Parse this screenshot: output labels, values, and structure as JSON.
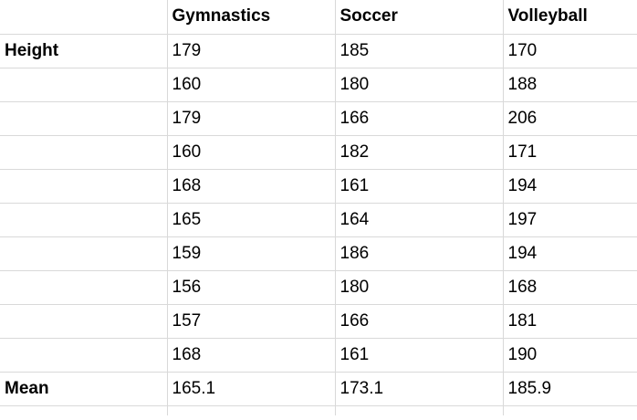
{
  "columns": [
    "",
    "Gymnastics",
    "Soccer",
    "Volleyball"
  ],
  "rows": [
    {
      "label": "Height",
      "values": [
        "179",
        "185",
        "170"
      ]
    },
    {
      "label": "",
      "values": [
        "160",
        "180",
        "188"
      ]
    },
    {
      "label": "",
      "values": [
        "179",
        "166",
        "206"
      ]
    },
    {
      "label": "",
      "values": [
        "160",
        "182",
        "171"
      ]
    },
    {
      "label": "",
      "values": [
        "168",
        "161",
        "194"
      ]
    },
    {
      "label": "",
      "values": [
        "165",
        "164",
        "197"
      ]
    },
    {
      "label": "",
      "values": [
        "159",
        "186",
        "194"
      ]
    },
    {
      "label": "",
      "values": [
        "156",
        "180",
        "168"
      ]
    },
    {
      "label": "",
      "values": [
        "157",
        "166",
        "181"
      ]
    },
    {
      "label": "",
      "values": [
        "168",
        "161",
        "190"
      ]
    }
  ],
  "mean": {
    "label": "Mean",
    "values": [
      "165.1",
      "173.1",
      "185.9"
    ]
  }
}
